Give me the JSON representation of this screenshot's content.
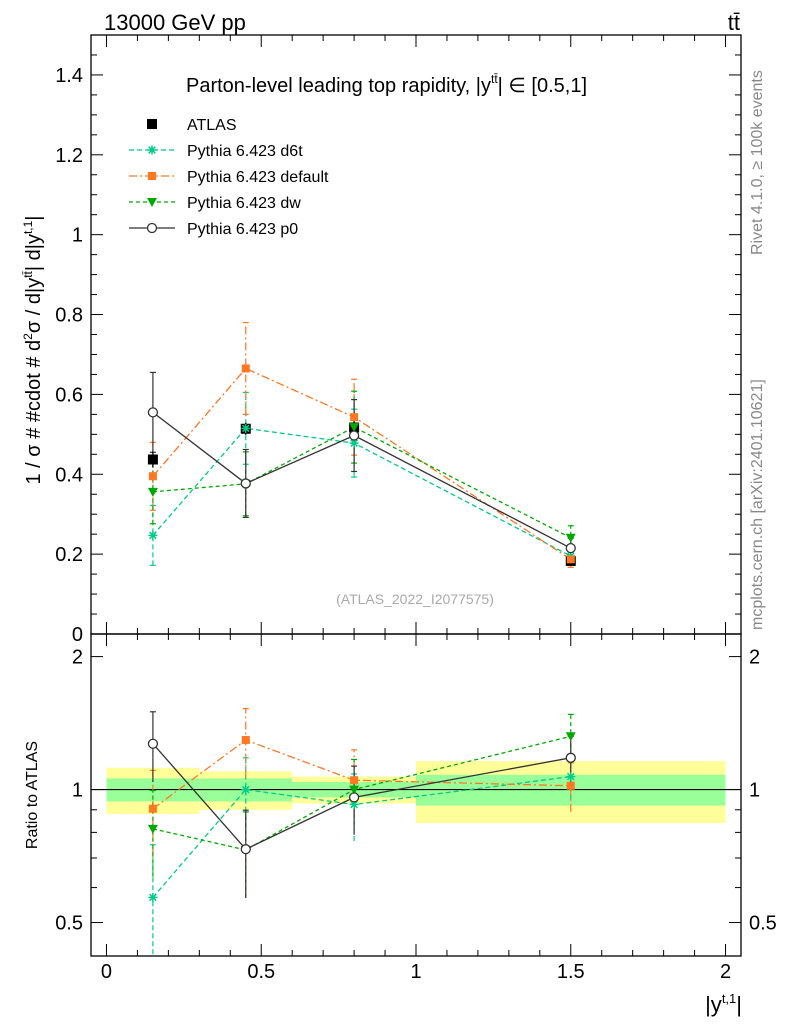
{
  "header": {
    "energy": "13000 GeV pp",
    "process": "tt̄"
  },
  "side_labels": {
    "rivet": "Rivet 4.1.0, ≥ 100k events",
    "mcplots": "mcplots.cern.ch [arXiv:2401.10621]"
  },
  "chart_data": {
    "type": "line",
    "title": "Parton-level leading top rapidity, |y^{tt̄}| ∈ [0.5,1]",
    "title_text": "Parton-level leading top rapidity, |y",
    "title_sup": "tt̄",
    "title_suffix": "| ∈ [0.5,1]",
    "analysis_id": "(ATLAS_2022_I2077575)",
    "ylabel": "1 / σ # #cdot # d²σ / d|y^{tt̄}| d|y^{t,1}|",
    "ylabel_main": "1 / σ # #cdot # d",
    "ylabel_part2": "σ / d|y",
    "ylabel_part3": "| d|y",
    "ylabel_sup1": "2",
    "ylabel_sup2": "tt̄",
    "ylabel_sup3": "t,1",
    "ylabel_end": "|",
    "xlabel_base": "|y",
    "xlabel_sup": "t,1",
    "xlabel_end": "|",
    "ratio_ylabel": "Ratio to ATLAS",
    "xlim": [
      -0.05,
      2.05
    ],
    "ylim": [
      0,
      1.5
    ],
    "ratio_ylim": [
      0.42,
      2.25
    ],
    "x_ticks": [
      {
        "v": 0,
        "label": "0"
      },
      {
        "v": 0.5,
        "label": "0.5"
      },
      {
        "v": 1,
        "label": "1"
      },
      {
        "v": 1.5,
        "label": "1.5"
      },
      {
        "v": 2,
        "label": "2"
      }
    ],
    "y_ticks": [
      {
        "v": 0,
        "label": "0"
      },
      {
        "v": 0.2,
        "label": "0.2"
      },
      {
        "v": 0.4,
        "label": "0.4"
      },
      {
        "v": 0.6,
        "label": "0.6"
      },
      {
        "v": 0.8,
        "label": "0.8"
      },
      {
        "v": 1,
        "label": "1"
      },
      {
        "v": 1.2,
        "label": "1.2"
      },
      {
        "v": 1.4,
        "label": "1.4"
      }
    ],
    "ratio_y_ticks": [
      {
        "v": 0.5,
        "label": "0.5"
      },
      {
        "v": 1,
        "label": "1"
      },
      {
        "v": 2,
        "label": "2"
      }
    ],
    "bins": [
      {
        "lo": 0,
        "hi": 0.3,
        "x": 0.15
      },
      {
        "lo": 0.3,
        "hi": 0.6,
        "x": 0.45
      },
      {
        "lo": 0.6,
        "hi": 1.0,
        "x": 0.8
      },
      {
        "lo": 1.0,
        "hi": 2.0,
        "x": 1.5
      }
    ],
    "data": {
      "name": "ATLAS",
      "values": [
        0.437,
        0.514,
        0.517,
        0.183
      ],
      "errors": [
        0.02,
        0.015,
        0.015,
        0.01
      ],
      "band_inner": [
        0.06,
        0.06,
        0.04,
        0.08
      ],
      "band_outer": [
        0.12,
        0.1,
        0.07,
        0.16
      ]
    },
    "series": [
      {
        "name": "Pythia 6.423 d6t",
        "color": "#00cc88",
        "dash": "5,3",
        "marker": "star",
        "values": [
          0.247,
          0.515,
          0.478,
          0.195
        ],
        "errors": [
          0.075,
          0.09,
          0.085,
          0.02
        ],
        "ratio": [
          0.57,
          1.0,
          0.925,
          1.07
        ],
        "ratio_err": [
          0.18,
          0.18,
          0.16,
          0.12
        ]
      },
      {
        "name": "Pythia 6.423 default",
        "color": "#ff7722",
        "dash": "8,3,2,3",
        "marker": "square",
        "values": [
          0.395,
          0.665,
          0.543,
          0.187
        ],
        "errors": [
          0.085,
          0.115,
          0.095,
          0.02
        ],
        "ratio": [
          0.905,
          1.295,
          1.05,
          1.02
        ],
        "ratio_err": [
          0.2,
          0.23,
          0.18,
          0.13
        ]
      },
      {
        "name": "Pythia 6.423 dw",
        "color": "#00aa00",
        "dash": "4,3",
        "marker": "triangle",
        "values": [
          0.356,
          0.376,
          0.518,
          0.241
        ],
        "errors": [
          0.08,
          0.08,
          0.09,
          0.03
        ],
        "ratio": [
          0.815,
          0.73,
          1.0,
          1.32
        ],
        "ratio_err": [
          0.18,
          0.16,
          0.17,
          0.16
        ]
      },
      {
        "name": "Pythia 6.423 p0",
        "color": "#333333",
        "dash": "",
        "marker": "circle",
        "values": [
          0.555,
          0.377,
          0.497,
          0.215
        ],
        "errors": [
          0.1,
          0.085,
          0.09,
          0.025
        ],
        "ratio": [
          1.27,
          0.733,
          0.96,
          1.18
        ],
        "ratio_err": [
          0.23,
          0.165,
          0.17,
          0.14
        ]
      }
    ]
  }
}
